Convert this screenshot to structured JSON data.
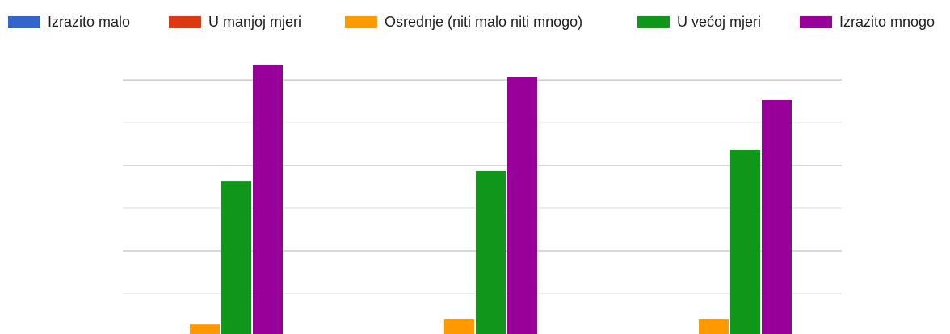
{
  "chart_data": {
    "type": "bar",
    "categories": [
      null,
      null,
      null
    ],
    "series": [
      {
        "name": "Izrazito malo",
        "color": "#3366cc",
        "values": [
          0,
          0,
          0
        ]
      },
      {
        "name": "U manjoj mjeri",
        "color": "#dc3912",
        "values": [
          0,
          0,
          0
        ]
      },
      {
        "name": "Osrednje (niti malo niti mnogo)",
        "color": "#ff9900",
        "values": [
          0.28,
          0.4,
          0.4
        ]
      },
      {
        "name": "U većoj mjeri",
        "color": "#109618",
        "values": [
          3.64,
          3.87,
          4.36
        ]
      },
      {
        "name": "Izrazito mnogo",
        "color": "#990099",
        "values": [
          6.36,
          6.06,
          5.53
        ]
      }
    ],
    "ylim": [
      0,
      7.87
    ],
    "yticks": [
      1,
      2,
      3,
      4,
      5,
      6
    ],
    "grid": true,
    "legend": "top"
  }
}
